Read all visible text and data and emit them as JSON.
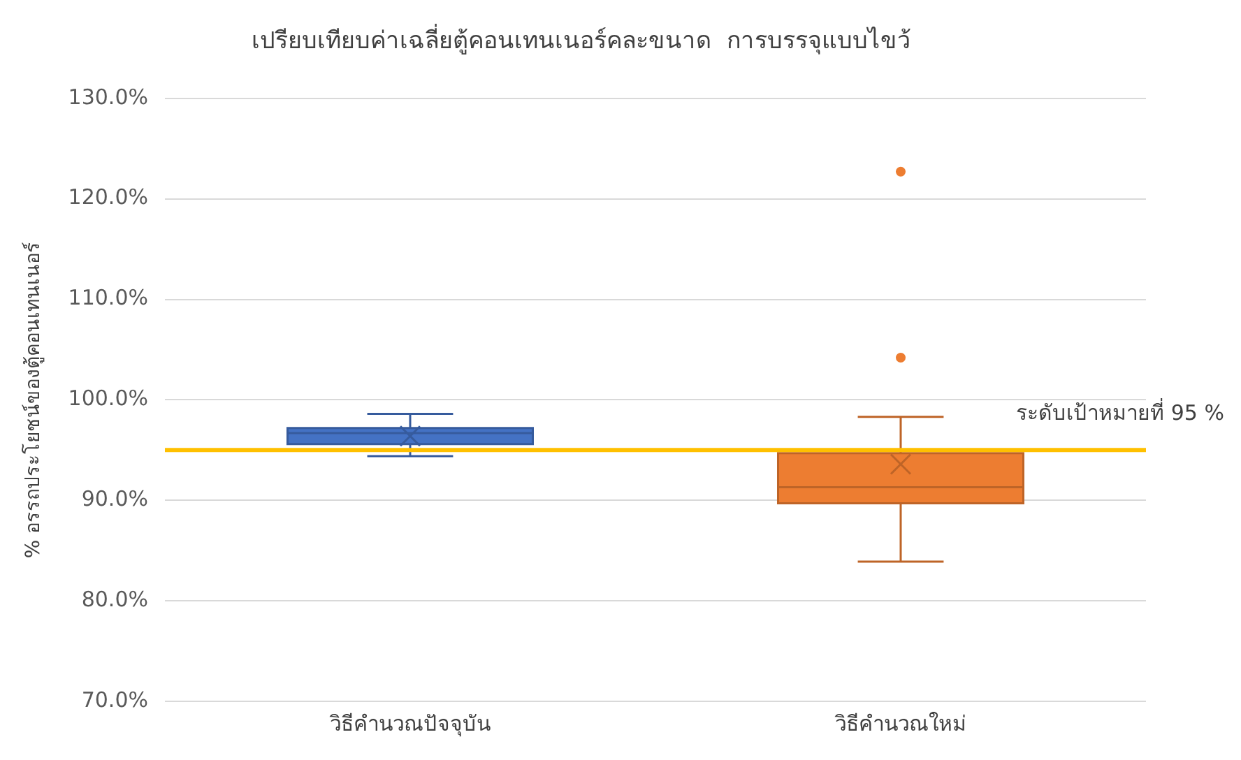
{
  "chart_data": {
    "type": "box",
    "title": "เปรียบเทียบค่าเฉลี่ยตู้คอนเทนเนอร์คละขนาด  การบรรจุแบบไขว้",
    "ylabel": "% อรรถประโยชน์ของตู้คอนเทนเนอร์",
    "categories": [
      "วิธีคำนวณปัจจุบัน",
      "วิธีคำนวณใหม่"
    ],
    "colors": [
      "#4472c4",
      "#ed7d31"
    ],
    "boxes": [
      {
        "low": 94.4,
        "q1": 95.6,
        "median": 96.7,
        "q3": 97.2,
        "high": 98.6,
        "mean": 96.4
      },
      {
        "low": 83.9,
        "q1": 89.7,
        "median": 91.3,
        "q3": 94.7,
        "high": 98.3,
        "mean": 93.6,
        "outliers": [
          104.2,
          122.7
        ]
      }
    ],
    "ylim": [
      70,
      130
    ],
    "yticks": [
      {
        "value": 70,
        "label": "70.0%"
      },
      {
        "value": 80,
        "label": "80.0%"
      },
      {
        "value": 90,
        "label": "90.0%"
      },
      {
        "value": 100,
        "label": "100.0%"
      },
      {
        "value": 110,
        "label": "110.0%"
      },
      {
        "value": 120,
        "label": "120.0%"
      },
      {
        "value": 130,
        "label": "130.0%"
      }
    ],
    "grid": "y",
    "marker": "circle",
    "ref_lines": [
      {
        "axis": "y",
        "value": 95,
        "label": "ระดับเป้าหมายที่ 95 %",
        "color": "#ffc000"
      }
    ]
  }
}
